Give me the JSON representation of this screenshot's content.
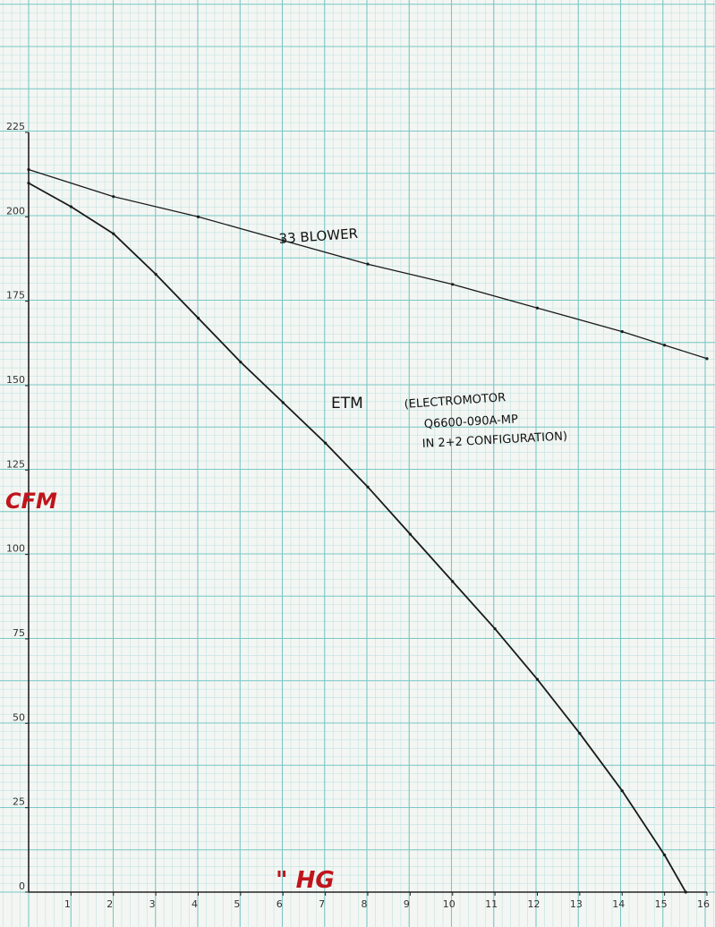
{
  "chart_data": {
    "type": "line",
    "xlabel": "\" HG",
    "ylabel": "CFM",
    "xlim": [
      0,
      16
    ],
    "ylim": [
      0,
      225
    ],
    "xticks": [
      "1",
      "2",
      "3",
      "4",
      "5",
      "6",
      "7",
      "8",
      "9",
      "10",
      "11",
      "12",
      "13",
      "14",
      "15",
      "16"
    ],
    "yticks": [
      "0",
      "25",
      "50",
      "75",
      "100",
      "125",
      "150",
      "175",
      "200",
      "225"
    ],
    "grid": true,
    "series": [
      {
        "name": "33 BLOWER",
        "x": [
          0,
          2,
          4,
          6,
          8,
          10,
          12,
          14,
          15,
          16
        ],
        "y": [
          214,
          206,
          200,
          193,
          186,
          180,
          173,
          166,
          162,
          158
        ]
      },
      {
        "name": "ETM",
        "x": [
          0,
          1,
          2,
          3,
          4,
          5,
          6,
          7,
          8,
          9,
          10,
          11,
          12,
          13,
          14,
          15,
          15.5
        ],
        "y": [
          210,
          203,
          195,
          183,
          170,
          157,
          145,
          133,
          120,
          106,
          92,
          78,
          63,
          47,
          30,
          11,
          0
        ]
      }
    ],
    "annotations": {
      "blower_label": "33 BLOWER",
      "etm_label": "ETM",
      "etm_note_1": "(ELECTROMOTOR",
      "etm_note_2": "Q6600-090A-MP",
      "etm_note_3": "IN 2+2 CONFIGURATION)"
    }
  },
  "colors": {
    "grid_major": "#79c8c6",
    "grid_minor": "#c6e6e4",
    "curve": "#1a1a1a",
    "axis_label": "#c0141c"
  }
}
